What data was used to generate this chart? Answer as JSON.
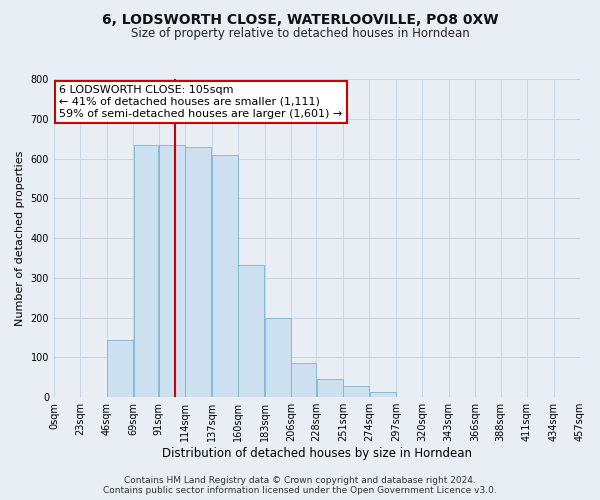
{
  "title": "6, LODSWORTH CLOSE, WATERLOOVILLE, PO8 0XW",
  "subtitle": "Size of property relative to detached houses in Horndean",
  "xlabel": "Distribution of detached houses by size in Horndean",
  "ylabel": "Number of detached properties",
  "bar_edges": [
    0,
    23,
    46,
    69,
    91,
    114,
    137,
    160,
    183,
    206,
    228,
    251,
    274,
    297,
    320,
    343,
    366,
    388,
    411,
    434,
    457
  ],
  "bar_heights": [
    0,
    0,
    143,
    635,
    633,
    630,
    610,
    333,
    200,
    85,
    46,
    27,
    12,
    0,
    0,
    0,
    0,
    0,
    0,
    0
  ],
  "bar_color": "#cce0f0",
  "bar_edge_color": "#7ab4d4",
  "property_size": 105,
  "vline_color": "#cc0000",
  "annotation_line1": "6 LODSWORTH CLOSE: 105sqm",
  "annotation_line2": "← 41% of detached houses are smaller (1,111)",
  "annotation_line3": "59% of semi-detached houses are larger (1,601) →",
  "annotation_box_color": "#ffffff",
  "annotation_box_edge": "#cc0000",
  "ylim": [
    0,
    800
  ],
  "yticks": [
    0,
    100,
    200,
    300,
    400,
    500,
    600,
    700,
    800
  ],
  "tick_labels": [
    "0sqm",
    "23sqm",
    "46sqm",
    "69sqm",
    "91sqm",
    "114sqm",
    "137sqm",
    "160sqm",
    "183sqm",
    "206sqm",
    "228sqm",
    "251sqm",
    "274sqm",
    "297sqm",
    "320sqm",
    "343sqm",
    "366sqm",
    "388sqm",
    "411sqm",
    "434sqm",
    "457sqm"
  ],
  "footnote1": "Contains HM Land Registry data © Crown copyright and database right 2024.",
  "footnote2": "Contains public sector information licensed under the Open Government Licence v3.0.",
  "bg_color": "#e8eef4",
  "plot_bg_color": "#e8eef4",
  "grid_color": "#c8d4e0",
  "title_fontsize": 10,
  "subtitle_fontsize": 8.5,
  "xlabel_fontsize": 8.5,
  "ylabel_fontsize": 8,
  "tick_fontsize": 7,
  "annot_fontsize": 8,
  "footnote_fontsize": 6.5
}
